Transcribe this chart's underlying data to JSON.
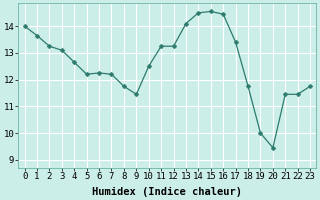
{
  "x": [
    0,
    1,
    2,
    3,
    4,
    5,
    6,
    7,
    8,
    9,
    10,
    11,
    12,
    13,
    14,
    15,
    16,
    17,
    18,
    19,
    20,
    21,
    22,
    23
  ],
  "y": [
    14.0,
    13.65,
    13.25,
    13.1,
    12.65,
    12.2,
    12.25,
    12.2,
    11.75,
    11.45,
    12.5,
    13.25,
    13.25,
    14.1,
    14.5,
    14.55,
    14.45,
    13.4,
    11.75,
    10.0,
    9.45,
    11.45,
    11.45,
    11.75
  ],
  "line_color": "#2d7b6e",
  "marker": "D",
  "marker_size": 2.5,
  "bg_color": "#cceee8",
  "grid_color": "#ffffff",
  "xlabel": "Humidex (Indice chaleur)",
  "ylim": [
    8.7,
    14.85
  ],
  "xlim": [
    -0.5,
    23.5
  ],
  "yticks": [
    9,
    10,
    11,
    12,
    13,
    14
  ],
  "xticks": [
    0,
    1,
    2,
    3,
    4,
    5,
    6,
    7,
    8,
    9,
    10,
    11,
    12,
    13,
    14,
    15,
    16,
    17,
    18,
    19,
    20,
    21,
    22,
    23
  ],
  "tick_fontsize": 6.5,
  "xlabel_fontsize": 7.5
}
